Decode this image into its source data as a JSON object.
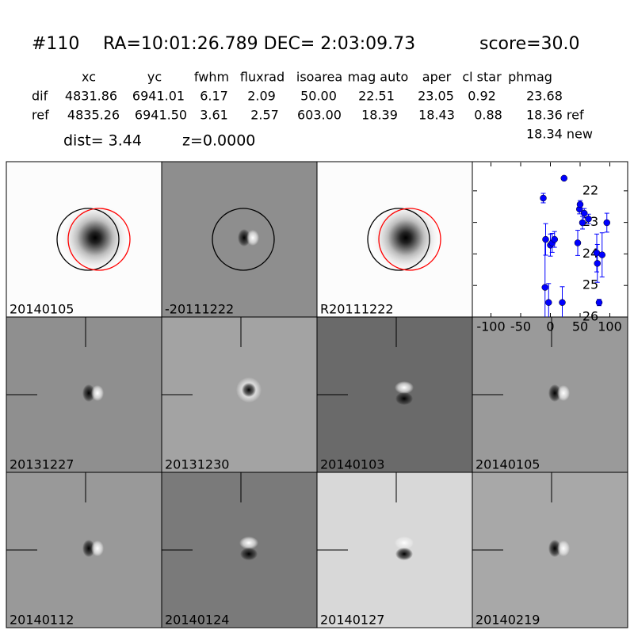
{
  "header": {
    "id": "#110",
    "coords": "RA=10:01:26.789 DEC= 2:03:09.73",
    "score": "score=30.0"
  },
  "table": {
    "columns": [
      "xc",
      "yc",
      "fwhm",
      "fluxrad",
      "isoarea",
      "mag auto",
      "aper",
      "cl star",
      "phmag"
    ],
    "rows": [
      [
        "dif",
        "4831.86",
        "6941.01",
        "6.17",
        "2.09",
        "50.00",
        "22.51",
        "23.05",
        "0.92",
        "23.68"
      ],
      [
        "ref",
        "4835.26",
        "6941.50",
        "3.61",
        "2.57",
        "603.00",
        "18.39",
        "18.43",
        "0.88",
        "18.36 ref"
      ]
    ],
    "extra": "18.34 new"
  },
  "dist": "dist=  3.44",
  "z": "z=0.0000",
  "panels": [
    {
      "label": "20140105"
    },
    {
      "label": "-20111222"
    },
    {
      "label": "R20111222"
    },
    {
      "label": "20131227"
    },
    {
      "label": "20131230"
    },
    {
      "label": "20140103"
    },
    {
      "label": "20140105",
      "color": "#ff0000"
    },
    {
      "label": "20140112"
    },
    {
      "label": "20140124"
    },
    {
      "label": "20140127"
    },
    {
      "label": "20140219"
    }
  ],
  "chart_data": {
    "type": "scatter",
    "x": [
      -12,
      -9,
      -8,
      -3,
      0,
      3,
      7,
      23,
      20,
      46,
      49,
      50,
      54,
      57,
      64,
      78,
      79,
      82,
      87,
      95
    ],
    "series": [
      {
        "color": "#0000ff",
        "values": [
          22.23,
          25.06,
          23.54,
          25.54,
          23.72,
          23.65,
          23.54,
          21.6,
          25.54,
          23.65,
          22.58,
          22.43,
          23.01,
          22.71,
          22.89,
          23.97,
          24.3,
          25.54,
          24.03,
          23.01
        ],
        "errors": [
          0.15,
          1.5,
          0.5,
          0.6,
          0.35,
          0.3,
          0.25,
          0.05,
          0.5,
          0.4,
          0.15,
          0.12,
          0.2,
          0.15,
          0.15,
          0.6,
          0.6,
          0.1,
          0.7,
          0.3
        ]
      }
    ],
    "xlim": [
      -130,
      130
    ],
    "ylim": [
      26,
      21.1
    ],
    "xticks": [
      -100,
      -50,
      0,
      50,
      100
    ],
    "yticks": [
      22,
      23,
      24,
      25,
      26
    ]
  }
}
